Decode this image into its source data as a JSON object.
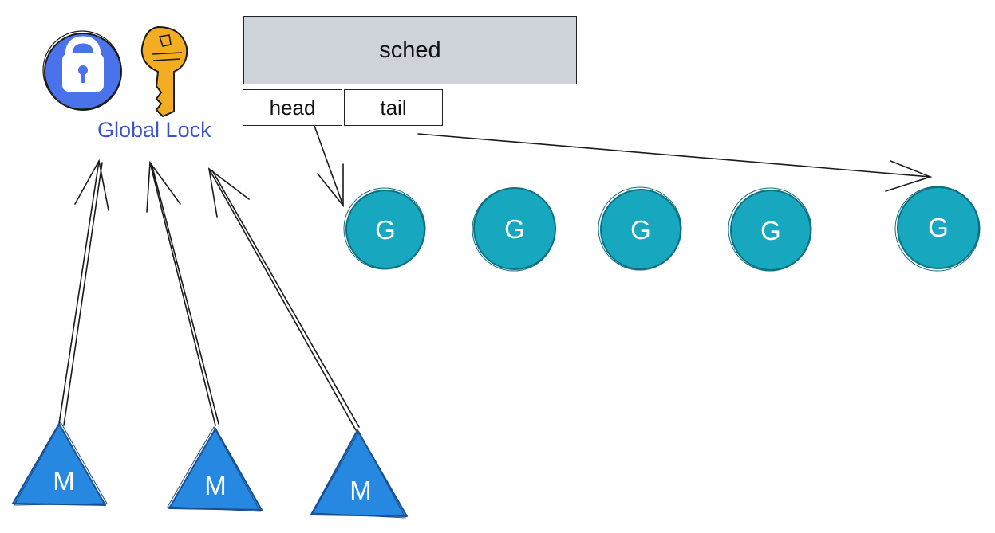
{
  "scheduler": {
    "title": "sched",
    "head_label": "head",
    "tail_label": "tail"
  },
  "global_lock": {
    "label": "Global Lock",
    "icons": [
      "lock-icon",
      "key-icon"
    ]
  },
  "goroutines": [
    {
      "label": "G"
    },
    {
      "label": "G"
    },
    {
      "label": "G"
    },
    {
      "label": "G"
    },
    {
      "label": "G"
    }
  ],
  "machines": [
    {
      "label": "M"
    },
    {
      "label": "M"
    },
    {
      "label": "M"
    }
  ],
  "colors": {
    "lock_circle": "#4a72ea",
    "key": "#f2ad22",
    "goroutine": "#17a8bf",
    "machine": "#2688e0",
    "sched_fill": "#ced3da",
    "label_blue": "#3b55c8"
  }
}
